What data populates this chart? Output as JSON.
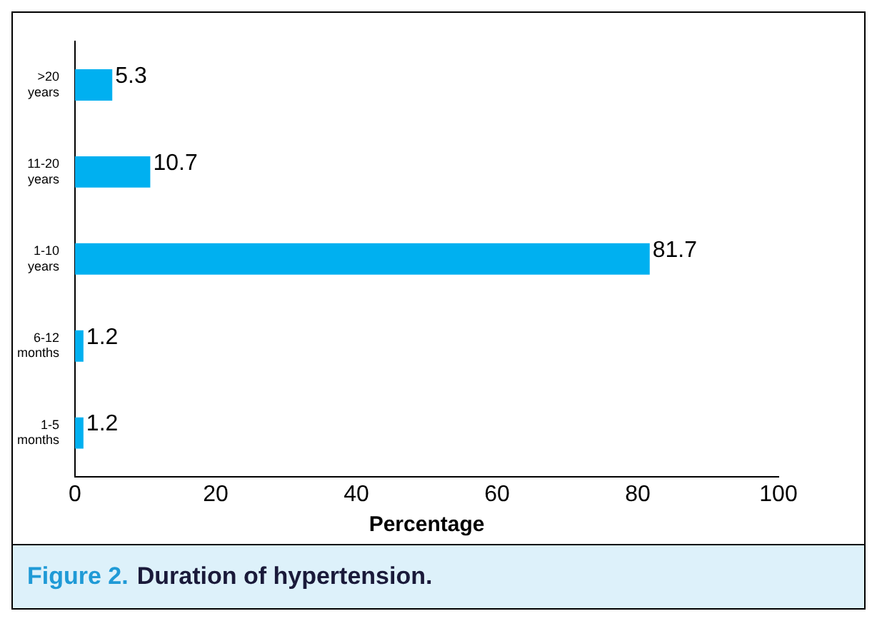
{
  "chart_data": {
    "type": "bar",
    "orientation": "horizontal",
    "categories": [
      ">20 years",
      "11-20 years",
      "1-10 years",
      "6-12 months",
      "1-5 months"
    ],
    "values": [
      5.3,
      10.7,
      81.7,
      1.2,
      1.2
    ],
    "color": "#00b0f0",
    "xlim": [
      0,
      100
    ],
    "xticks": [
      0,
      20,
      40,
      60,
      80,
      100
    ],
    "xlabel": "Percentage",
    "data_labels": true,
    "grid": false,
    "legend": false,
    "annotations": [
      "Figure 2.",
      "Duration of hypertension."
    ]
  }
}
